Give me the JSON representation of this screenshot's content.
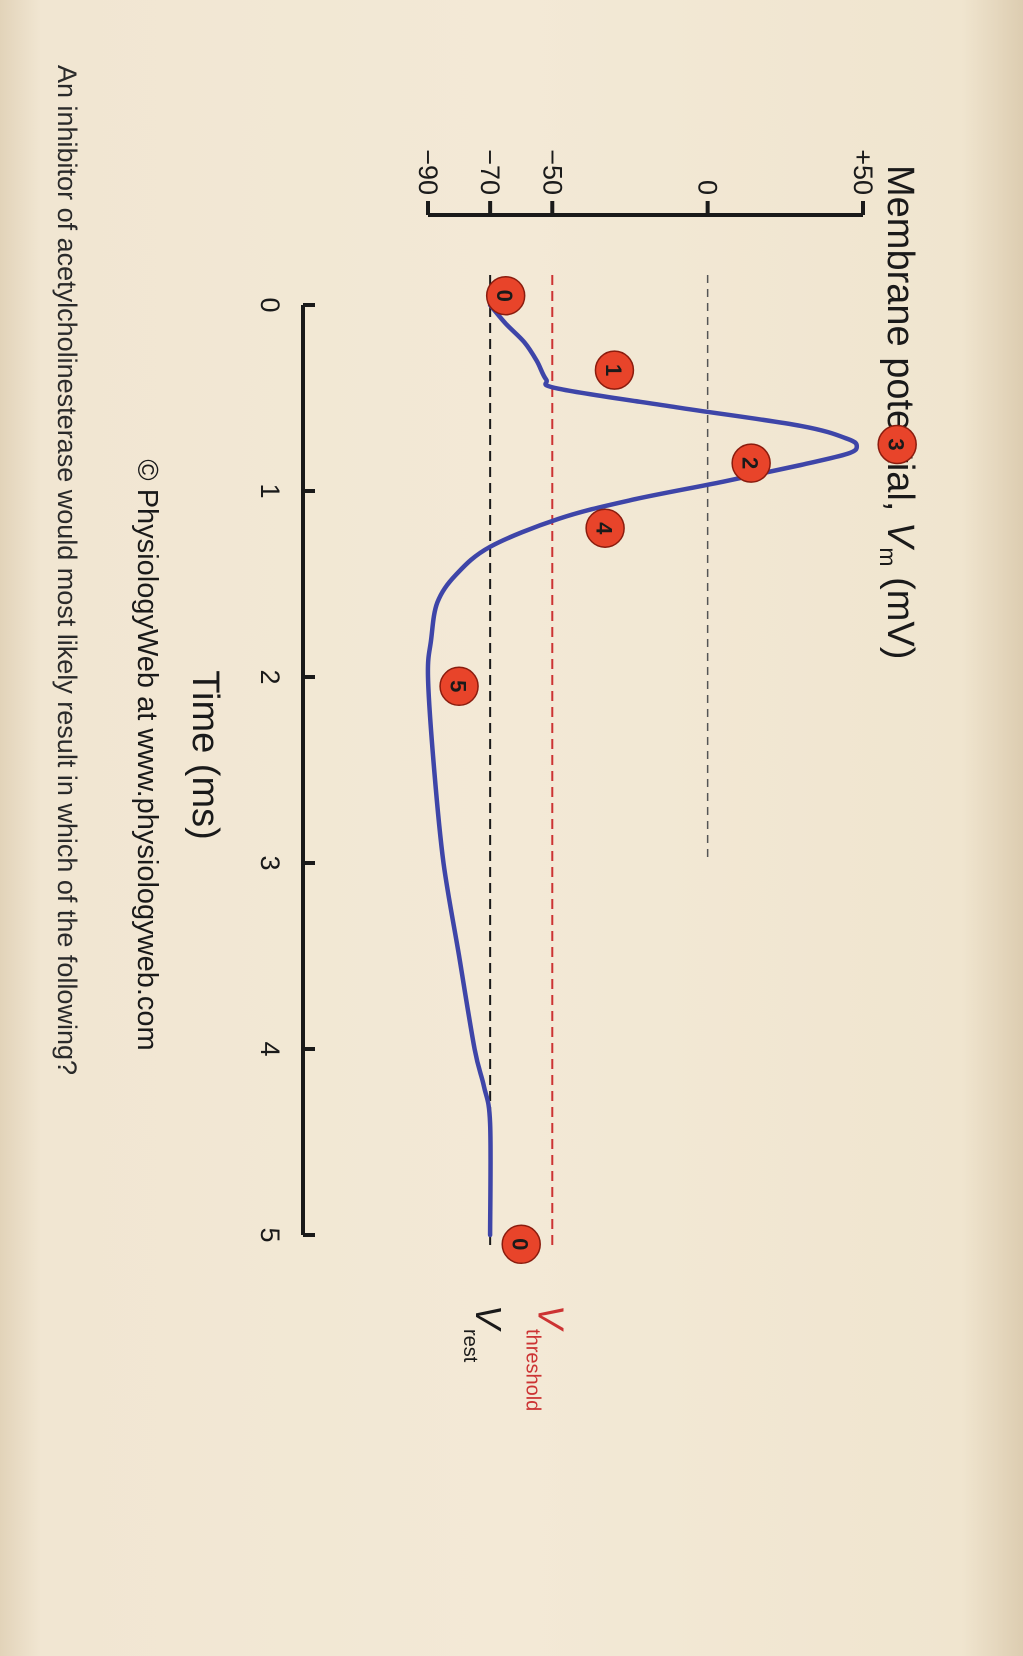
{
  "chart_data": {
    "type": "line",
    "title": "",
    "ylabel": "Membrane potential, V",
    "ylabel_subscript": "m",
    "ylabel_unit": " (mV)",
    "xlabel": "Time (ms)",
    "ylim": [
      -90,
      50
    ],
    "xlim": [
      0,
      5
    ],
    "y_ticks": [
      50,
      0,
      -50,
      -70,
      -90
    ],
    "y_tick_labels": [
      "+50",
      "0",
      "−50",
      "−70",
      "−90"
    ],
    "x_ticks": [
      0,
      1,
      2,
      3,
      4,
      5
    ],
    "x_tick_labels": [
      "0",
      "1",
      "2",
      "3",
      "4",
      "5"
    ],
    "series": [
      {
        "x": [
          0,
          0.1,
          0.2,
          0.3,
          0.4,
          0.45,
          0.55,
          0.65,
          0.72,
          0.76,
          0.8,
          0.86,
          0.95,
          1.05,
          1.15,
          1.3,
          1.45,
          1.6,
          1.8,
          2.0,
          2.5,
          3.0,
          3.5,
          4.0,
          4.2,
          4.4,
          5.0
        ],
        "y": [
          -70,
          -65,
          -59,
          -55,
          -52,
          -48,
          -10,
          30,
          45,
          48,
          45,
          30,
          5,
          -25,
          -48,
          -70,
          -81,
          -87,
          -89,
          -90,
          -88,
          -85,
          -80,
          -75,
          -72,
          -70,
          -70
        ],
        "color": "#3e45a8"
      }
    ],
    "reference_lines": [
      {
        "name": "threshold",
        "y": -50,
        "color": "#cc3333",
        "style": "dashed"
      },
      {
        "name": "rest",
        "y": -70,
        "color": "#1a1a1a",
        "style": "dashed"
      },
      {
        "name": "zero",
        "y": 0,
        "color": "#555555",
        "style": "dashed",
        "x_end": 3
      }
    ],
    "line_labels": [
      {
        "main": "V",
        "sub": "threshold",
        "color": "#cc3333"
      },
      {
        "main": "V",
        "sub": "rest",
        "color": "#1a1a1a"
      }
    ],
    "annotations": [
      {
        "label": "0",
        "x": -0.05,
        "y": -65
      },
      {
        "label": "1",
        "x": 0.35,
        "y": -30
      },
      {
        "label": "2",
        "x": 0.85,
        "y": 14
      },
      {
        "label": "3",
        "x": 0.75,
        "y": 61
      },
      {
        "label": "4",
        "x": 1.2,
        "y": -33
      },
      {
        "label": "5",
        "x": 2.05,
        "y": -80
      },
      {
        "label": "0",
        "x": 5.05,
        "y": -60
      }
    ]
  },
  "credit": "© PhysiologyWeb at www.physiologyweb.com",
  "question": "An inhibitor of acetylcholinesterase would most likely result in which of the following?"
}
